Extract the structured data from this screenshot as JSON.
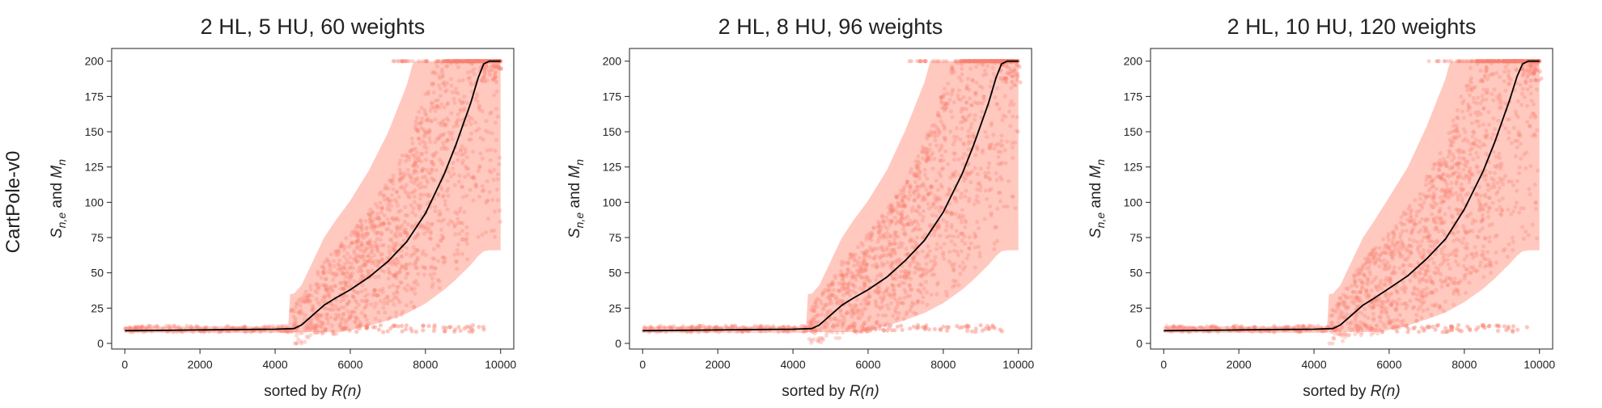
{
  "row_label": "CartPole-v0",
  "colors": {
    "scatter": "#fa8072",
    "median_line": "#000000",
    "band": "#ffc0b5"
  },
  "chart_data": [
    {
      "type": "scatter",
      "title": "2 HL, 5 HU, 60 weights",
      "xlabel_prefix": "sorted by ",
      "xlabel_math": "R(n)",
      "ylabel_main": "S",
      "ylabel_sub": "n,e",
      "ylabel_and": " and ",
      "ylabel_main2": "M",
      "ylabel_sub2": "n",
      "xlim": [
        -350,
        10350
      ],
      "ylim": [
        -4,
        209
      ],
      "xticks": [
        0,
        2000,
        4000,
        6000,
        8000,
        10000
      ],
      "yticks": [
        0,
        25,
        50,
        75,
        100,
        125,
        150,
        175,
        200
      ],
      "median_line": {
        "x": [
          0,
          1000,
          2000,
          3000,
          4000,
          4500,
          4700,
          5000,
          5300,
          5600,
          6000,
          6500,
          7000,
          7500,
          8000,
          8500,
          8800,
          9000,
          9200,
          9400,
          9550,
          9700,
          10000
        ],
        "y": [
          9,
          9.2,
          9.5,
          9.8,
          10,
          10.5,
          13,
          20,
          27,
          32,
          38,
          47,
          58,
          72,
          92,
          120,
          140,
          155,
          170,
          188,
          198,
          200,
          200
        ]
      }
    },
    {
      "type": "scatter",
      "title": "2 HL, 8 HU, 96 weights",
      "xlabel_prefix": "sorted by ",
      "xlabel_math": "R(n)",
      "ylabel_main": "S",
      "ylabel_sub": "n,e",
      "ylabel_and": " and ",
      "ylabel_main2": "M",
      "ylabel_sub2": "n",
      "xlim": [
        -350,
        10350
      ],
      "ylim": [
        -4,
        209
      ],
      "xticks": [
        0,
        2000,
        4000,
        6000,
        8000,
        10000
      ],
      "yticks": [
        0,
        25,
        50,
        75,
        100,
        125,
        150,
        175,
        200
      ],
      "median_line": {
        "x": [
          0,
          1000,
          2000,
          3000,
          4000,
          4500,
          4700,
          5000,
          5300,
          5600,
          6000,
          6500,
          7000,
          7500,
          8000,
          8500,
          8800,
          9000,
          9200,
          9400,
          9550,
          9700,
          10000
        ],
        "y": [
          9,
          9.2,
          9.5,
          9.8,
          10,
          10.5,
          13,
          20,
          27,
          32,
          38,
          47,
          59,
          73,
          93,
          120,
          140,
          155,
          170,
          188,
          198,
          200,
          200
        ]
      }
    },
    {
      "type": "scatter",
      "title": "2 HL, 10 HU, 120 weights",
      "xlabel_prefix": "sorted by ",
      "xlabel_math": "R(n)",
      "ylabel_main": "S",
      "ylabel_sub": "n,e",
      "ylabel_and": " and ",
      "ylabel_main2": "M",
      "ylabel_sub2": "n",
      "xlim": [
        -350,
        10350
      ],
      "ylim": [
        -4,
        209
      ],
      "xticks": [
        0,
        2000,
        4000,
        6000,
        8000,
        10000
      ],
      "yticks": [
        0,
        25,
        50,
        75,
        100,
        125,
        150,
        175,
        200
      ],
      "median_line": {
        "x": [
          0,
          1000,
          2000,
          3000,
          4000,
          4500,
          4700,
          5000,
          5300,
          5600,
          6000,
          6500,
          7000,
          7500,
          8000,
          8500,
          8800,
          9000,
          9200,
          9400,
          9550,
          9700,
          10000
        ],
        "y": [
          9,
          9.2,
          9.5,
          9.8,
          10,
          10.5,
          13,
          20,
          27,
          32,
          39,
          48,
          60,
          74,
          95,
          122,
          142,
          157,
          172,
          189,
          198,
          200,
          200
        ]
      }
    }
  ]
}
